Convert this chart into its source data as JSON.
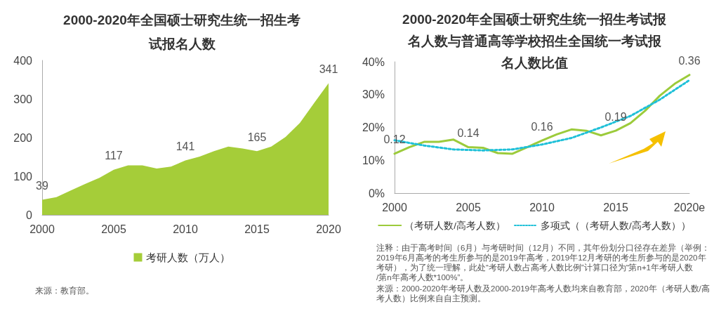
{
  "chart_data": [
    {
      "type": "area",
      "title": "2000-2020年全国硕士研究生统一招生考试报名人数",
      "x": [
        2000,
        2001,
        2002,
        2003,
        2004,
        2005,
        2006,
        2007,
        2008,
        2009,
        2010,
        2011,
        2012,
        2013,
        2014,
        2015,
        2016,
        2017,
        2018,
        2019,
        2020
      ],
      "series": [
        {
          "name": "考研人数（万人）",
          "color": "#a5cd39",
          "values": [
            39,
            46,
            63,
            80,
            96,
            117,
            128,
            128,
            120,
            125,
            141,
            151,
            165,
            177,
            172,
            165,
            177,
            202,
            238,
            290,
            341
          ],
          "value_labels": [
            "39",
            null,
            null,
            null,
            null,
            "117",
            null,
            null,
            null,
            null,
            "141",
            null,
            null,
            null,
            null,
            "165",
            null,
            null,
            null,
            null,
            "341"
          ]
        }
      ],
      "xlim": [
        2000,
        2020
      ],
      "xticks": [
        2000,
        2005,
        2010,
        2015,
        2020
      ],
      "ylim": [
        0,
        400
      ],
      "yticks": [
        0,
        100,
        200,
        300,
        400
      ],
      "marker": "none",
      "legend": "bottom",
      "annotations": [
        "来源：教育部。"
      ]
    },
    {
      "type": "line",
      "title": "2000-2020年全国硕士研究生统一招生考试报名人数与普通高等学校招生全国统一考试报名人数比值",
      "x": [
        2000,
        2001,
        2002,
        2003,
        2004,
        2005,
        2006,
        2007,
        2008,
        2009,
        2010,
        2011,
        2012,
        2013,
        2014,
        2015,
        2016,
        2017,
        2018,
        2019,
        2020
      ],
      "series": [
        {
          "name": "（考研人数/高考人数）",
          "color": "#9ccb3b",
          "line_style": "solid",
          "values": [
            0.12,
            0.14,
            0.156,
            0.156,
            0.163,
            0.14,
            0.138,
            0.122,
            0.12,
            0.14,
            0.16,
            0.179,
            0.194,
            0.19,
            0.176,
            0.19,
            0.213,
            0.251,
            0.297,
            0.333,
            0.36
          ],
          "value_labels": [
            "0.12",
            null,
            null,
            null,
            null,
            "0.14",
            null,
            null,
            null,
            null,
            "0.16",
            null,
            null,
            null,
            null,
            "0.19",
            null,
            null,
            null,
            null,
            "0.36"
          ]
        },
        {
          "name": "多项式（（考研人数/高考人数））",
          "color": "#1fc0d8",
          "line_style": "dotted",
          "x": [
            2000,
            2002,
            2004,
            2006,
            2008,
            2010,
            2012,
            2014,
            2016,
            2018,
            2020
          ],
          "values": [
            0.161,
            0.145,
            0.133,
            0.13,
            0.133,
            0.148,
            0.168,
            0.2,
            0.235,
            0.285,
            0.344
          ]
        }
      ],
      "xlim": [
        2000,
        2020
      ],
      "xticks": [
        2000,
        2005,
        2010,
        2015,
        {
          "value": 2020,
          "label": "2020e"
        }
      ],
      "ylim": [
        0,
        0.4
      ],
      "yticks": [
        {
          "value": 0,
          "label": "0%"
        },
        {
          "value": 0.1,
          "label": "10%"
        },
        {
          "value": 0.2,
          "label": "20%"
        },
        {
          "value": 0.3,
          "label": "30%"
        },
        {
          "value": 0.4,
          "label": "40%"
        }
      ],
      "marker": "none",
      "legend": "bottom",
      "annotations": [
        "注释：由于高考时间（6月）与考研时间（12月）不同，其年份划分口径存在差异（举例：2019年6月高考的考生所参与的是2019年高考，2019年12月考研的考生所参与的是2020年考研），为了统一理解，此处“考研人数占高考人数比例”计算口径为“第n+1年考研人数/第n年高考人数*100%”。",
        "来源：2000-2020年考研人数及2000-2019年高考人数均来自教育部，2020年（考研人数/高考人数）比例来自自主预测。"
      ]
    }
  ]
}
